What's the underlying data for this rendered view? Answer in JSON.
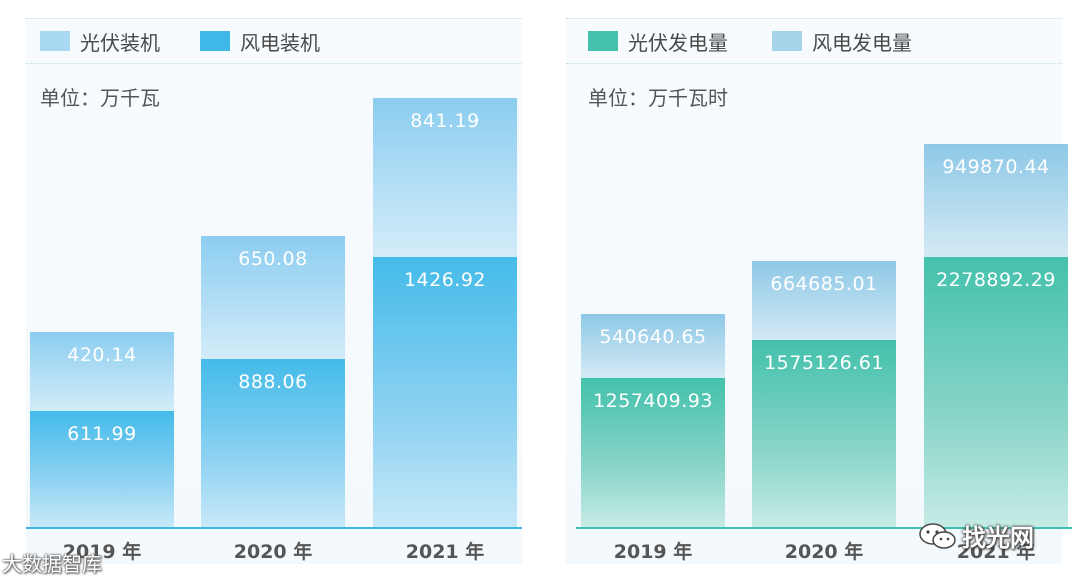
{
  "chart_data": [
    {
      "type": "bar",
      "stacked": true,
      "unit_label": "单位：万千瓦",
      "categories": [
        "2019 年",
        "2020 年",
        "2021 年"
      ],
      "series": [
        {
          "name": "风电装机",
          "values": [
            "611.99",
            "888.06",
            "1426.92"
          ],
          "color": "#46bdea"
        },
        {
          "name": "光伏装机",
          "values": [
            "420.14",
            "650.08",
            "841.19"
          ],
          "color": "#9fd3f2"
        }
      ],
      "legend": [
        "光伏装机",
        "风电装机"
      ],
      "legend_placement": "top-left",
      "ylim": [
        0,
        2350
      ],
      "grid": false
    },
    {
      "type": "bar",
      "stacked": true,
      "unit_label": "单位：万千瓦时",
      "categories": [
        "2019 年",
        "2020 年",
        "2021 年"
      ],
      "series": [
        {
          "name": "光伏发电量",
          "values": [
            "1257409.93",
            "1575126.61",
            "2278892.29"
          ],
          "color": "#4ec4b0"
        },
        {
          "name": "风电发电量",
          "values": [
            "540640.65",
            "664685.01",
            "949870.44"
          ],
          "color": "#9fcfe8"
        }
      ],
      "legend": [
        "光伏发电量",
        "风电发电量"
      ],
      "legend_placement": "top-left",
      "ylim": [
        0,
        3750000
      ],
      "grid": false
    }
  ],
  "watermarks": {
    "left": "大数据智库",
    "right": "找光网"
  }
}
